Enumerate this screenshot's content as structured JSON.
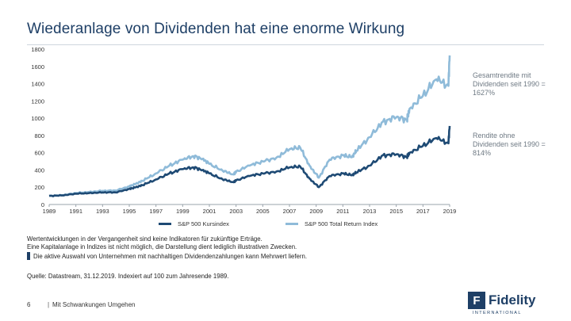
{
  "title": "Wiederanlage von Dividenden hat eine enorme Wirkung",
  "annotations": {
    "total": "Gesamtrendite mit Dividenden seit 1990 = 1627%",
    "price": "Rendite ohne Dividenden seit 1990 = 814%"
  },
  "notes": {
    "line1": "Wertentwicklungen in der Vergangenheit sind keine Indikatoren für zukünftige Erträge.",
    "line2": "Eine Kapitalanlage in Indizes ist nicht möglich, die Darstellung dient lediglich illustrativen Zwecken.",
    "bullet": "Die aktive Auswahl von Unternehmen mit nachhaltigen Dividendenzahlungen kann Mehrwert liefern.",
    "source": "Quelle: Datastream, 31.12.2019. Indexiert auf 100 zum Jahresende 1989."
  },
  "footer": {
    "page": "6",
    "separator": "|",
    "text": "Mit Schwankungen Umgehen",
    "logo_mark": "F",
    "logo_name": "Fidelity",
    "logo_sub": "INTERNATIONAL"
  },
  "colors": {
    "price": "#1e4a74",
    "total": "#8fbbd9",
    "title": "#1e3f66",
    "axis": "#9aa3ab"
  },
  "chart_data": {
    "type": "line",
    "title": "",
    "xlabel": "",
    "ylabel": "",
    "xlim": [
      1989,
      2019
    ],
    "ylim": [
      0,
      1800
    ],
    "yticks": [
      0,
      200,
      400,
      600,
      800,
      1000,
      1200,
      1400,
      1600,
      1800
    ],
    "xticks": [
      1989,
      1991,
      1993,
      1995,
      1997,
      1999,
      2001,
      2003,
      2005,
      2007,
      2009,
      2011,
      2013,
      2015,
      2017,
      2019
    ],
    "series": [
      {
        "name": "S&P 500 Kursindex",
        "key": "price",
        "x": [
          1989,
          1990,
          1991,
          1992,
          1993,
          1994,
          1995,
          1995.5,
          1996,
          1997,
          1998,
          1999,
          1999.8,
          2000.5,
          2001,
          2002,
          2002.8,
          2003,
          2004,
          2005,
          2006,
          2007,
          2007.8,
          2008.5,
          2009.2,
          2010,
          2011,
          2011.7,
          2012,
          2013,
          2014,
          2015,
          2015.8,
          2016,
          2017,
          2018,
          2018.9,
          2019
        ],
        "values": [
          100,
          105,
          125,
          132,
          140,
          140,
          180,
          200,
          225,
          290,
          360,
          410,
          430,
          400,
          360,
          290,
          260,
          280,
          330,
          360,
          380,
          430,
          440,
          300,
          200,
          330,
          360,
          340,
          370,
          450,
          570,
          580,
          550,
          600,
          680,
          770,
          710,
          910
        ]
      },
      {
        "name": "S&P 500 Total Return Index",
        "key": "total",
        "x": [
          1989,
          1990,
          1991,
          1992,
          1993,
          1994,
          1995,
          1995.5,
          1996,
          1997,
          1998,
          1999,
          1999.8,
          2000.5,
          2001,
          2002,
          2002.8,
          2003,
          2004,
          2005,
          2006,
          2007,
          2007.8,
          2008.5,
          2009.2,
          2010,
          2011,
          2011.7,
          2012,
          2013,
          2014,
          2015,
          2015.8,
          2016,
          2017,
          2018,
          2018.9,
          2019
        ],
        "values": [
          100,
          108,
          133,
          145,
          158,
          162,
          210,
          240,
          275,
          360,
          450,
          520,
          560,
          530,
          470,
          390,
          350,
          380,
          450,
          500,
          540,
          640,
          660,
          450,
          310,
          520,
          570,
          550,
          620,
          780,
          960,
          1010,
          980,
          1110,
          1260,
          1450,
          1380,
          1727
        ]
      }
    ],
    "legend": "bottom-center"
  }
}
